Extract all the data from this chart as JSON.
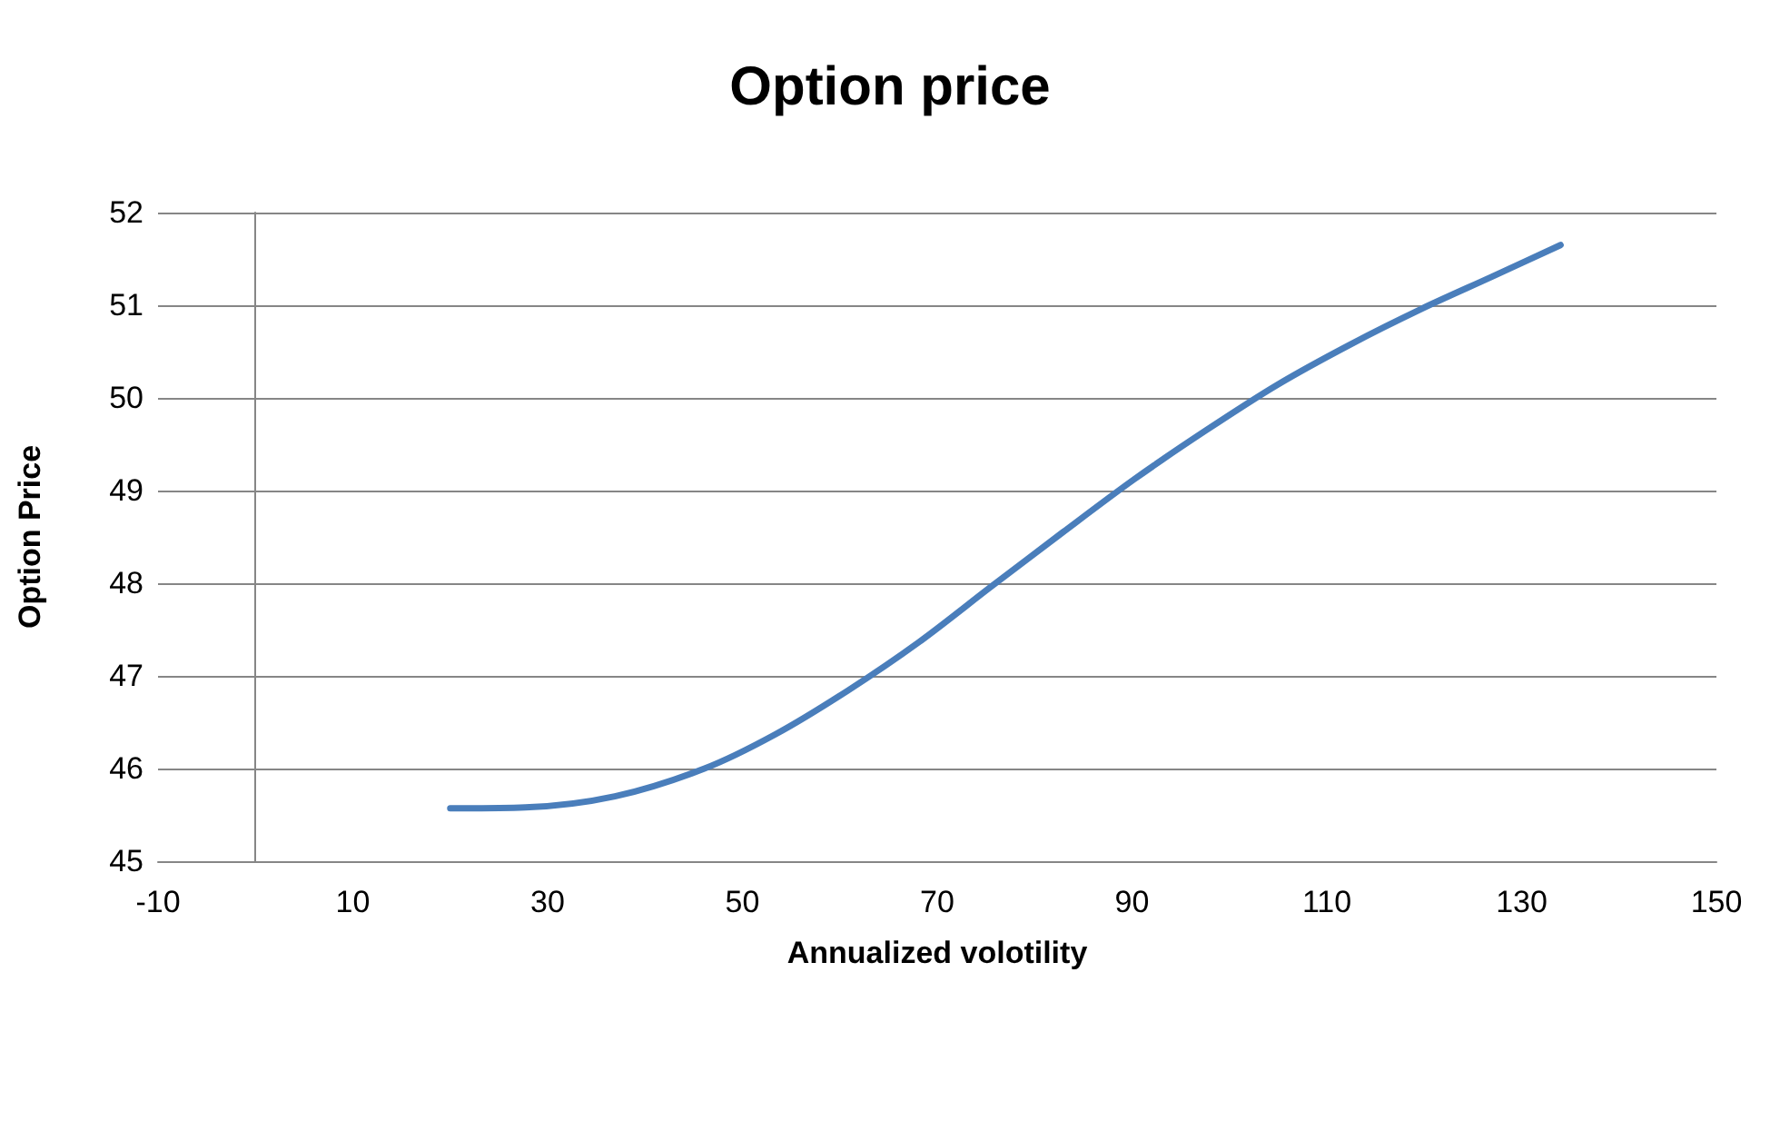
{
  "chart_data": {
    "type": "line",
    "title": "Option price",
    "xlabel": "Annualized volotility",
    "ylabel": "Option Price",
    "x": [
      20,
      27.7,
      36.9,
      46.1,
      53.4,
      60.8,
      68.2,
      75.5,
      82.9,
      90.2,
      97.6,
      104.9,
      112.3,
      119.7,
      127,
      134
    ],
    "series": [
      {
        "color": "#4a7ebb",
        "values": [
          45.57,
          45.58,
          45.7,
          46.0,
          46.37,
          46.84,
          47.37,
          47.96,
          48.55,
          49.12,
          49.65,
          50.14,
          50.57,
          50.96,
          51.31,
          51.65
        ]
      }
    ],
    "xlim": [
      -10,
      150
    ],
    "xticks": [
      -10,
      10,
      30,
      50,
      70,
      90,
      110,
      130,
      150
    ],
    "ylim": [
      45,
      52
    ],
    "yticks": [
      45,
      46,
      47,
      48,
      49,
      50,
      51,
      52
    ],
    "grid": "y",
    "marker": "none",
    "line_style": "solid"
  }
}
